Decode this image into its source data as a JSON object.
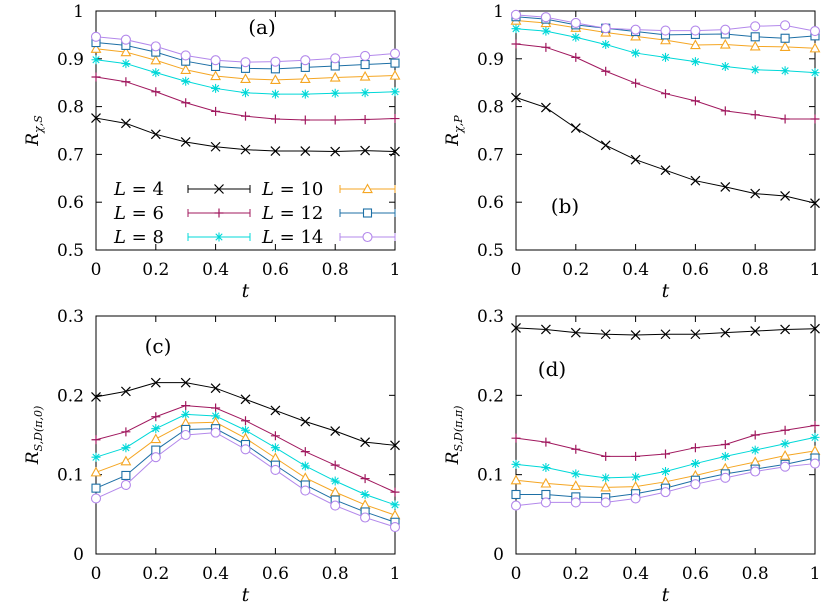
{
  "figure": {
    "legend_series": [
      "4",
      "6",
      "8",
      "10",
      "12",
      "14"
    ],
    "legend_prefix": "L ="
  },
  "chart_data": [
    {
      "type": "line",
      "panel_label": "(a)",
      "xlabel": "t",
      "ylabel_main": "R",
      "ylabel_sub": "χ,S",
      "xlim": [
        0,
        1
      ],
      "ylim": [
        0.5,
        1
      ],
      "xticks": [
        "0",
        "0.2",
        "0.4",
        "0.6",
        "0.8",
        "1"
      ],
      "yticks": [
        "0.5",
        "0.6",
        "0.7",
        "0.8",
        "0.9",
        "1"
      ],
      "x": [
        0,
        0.1,
        0.2,
        0.3,
        0.4,
        0.5,
        0.6,
        0.7,
        0.8,
        0.9,
        1.0
      ],
      "legend": "inside lower-left",
      "series": [
        {
          "name": "L = 4",
          "color": "#000000",
          "marker": "x",
          "values": [
            0.776,
            0.765,
            0.742,
            0.726,
            0.716,
            0.71,
            0.707,
            0.707,
            0.706,
            0.708,
            0.706
          ]
        },
        {
          "name": "L = 6",
          "color": "#a0185e",
          "marker": "plus",
          "values": [
            0.862,
            0.852,
            0.831,
            0.808,
            0.79,
            0.78,
            0.774,
            0.772,
            0.772,
            0.773,
            0.775
          ]
        },
        {
          "name": "L = 8",
          "color": "#00d8d8",
          "marker": "star",
          "values": [
            0.898,
            0.89,
            0.871,
            0.853,
            0.838,
            0.829,
            0.826,
            0.826,
            0.828,
            0.829,
            0.831
          ]
        },
        {
          "name": "L = 10",
          "color": "#f5a623",
          "marker": "triangle",
          "values": [
            0.921,
            0.914,
            0.897,
            0.877,
            0.864,
            0.858,
            0.856,
            0.858,
            0.861,
            0.863,
            0.865
          ]
        },
        {
          "name": "L = 12",
          "color": "#1d6fa5",
          "marker": "square",
          "values": [
            0.934,
            0.928,
            0.914,
            0.895,
            0.884,
            0.88,
            0.879,
            0.882,
            0.885,
            0.888,
            0.891
          ]
        },
        {
          "name": "L = 14",
          "color": "#b388eb",
          "marker": "circle",
          "values": [
            0.946,
            0.94,
            0.926,
            0.907,
            0.897,
            0.893,
            0.894,
            0.897,
            0.901,
            0.906,
            0.911
          ]
        }
      ]
    },
    {
      "type": "line",
      "panel_label": "(b)",
      "xlabel": "t",
      "ylabel_main": "R",
      "ylabel_sub": "χ,P",
      "xlim": [
        0,
        1
      ],
      "ylim": [
        0.5,
        1
      ],
      "xticks": [
        "0",
        "0.2",
        "0.4",
        "0.6",
        "0.8",
        "1"
      ],
      "yticks": [
        "0.5",
        "0.6",
        "0.7",
        "0.8",
        "0.9",
        "1"
      ],
      "x": [
        0,
        0.1,
        0.2,
        0.3,
        0.4,
        0.5,
        0.6,
        0.7,
        0.8,
        0.9,
        1.0
      ],
      "series": [
        {
          "name": "L = 4",
          "color": "#000000",
          "marker": "x",
          "values": [
            0.819,
            0.798,
            0.755,
            0.719,
            0.689,
            0.667,
            0.645,
            0.632,
            0.618,
            0.613,
            0.598
          ]
        },
        {
          "name": "L = 6",
          "color": "#a0185e",
          "marker": "plus",
          "values": [
            0.931,
            0.924,
            0.903,
            0.874,
            0.849,
            0.827,
            0.812,
            0.791,
            0.783,
            0.774,
            0.774
          ]
        },
        {
          "name": "L = 8",
          "color": "#00d8d8",
          "marker": "star",
          "values": [
            0.963,
            0.958,
            0.945,
            0.93,
            0.912,
            0.903,
            0.894,
            0.884,
            0.877,
            0.875,
            0.871
          ]
        },
        {
          "name": "L = 10",
          "color": "#f5a623",
          "marker": "triangle",
          "values": [
            0.98,
            0.975,
            0.965,
            0.955,
            0.947,
            0.939,
            0.929,
            0.93,
            0.926,
            0.925,
            0.922
          ]
        },
        {
          "name": "L = 12",
          "color": "#1d6fa5",
          "marker": "square",
          "values": [
            0.988,
            0.983,
            0.971,
            0.964,
            0.957,
            0.95,
            0.951,
            0.952,
            0.946,
            0.943,
            0.948
          ]
        },
        {
          "name": "L = 14",
          "color": "#b388eb",
          "marker": "circle",
          "values": [
            0.992,
            0.987,
            0.975,
            0.964,
            0.961,
            0.959,
            0.959,
            0.961,
            0.968,
            0.97,
            0.958
          ]
        }
      ]
    },
    {
      "type": "line",
      "panel_label": "(c)",
      "xlabel": "t",
      "ylabel_main": "R",
      "ylabel_sub": "S,D(π,0)",
      "xlim": [
        0,
        1
      ],
      "ylim": [
        0,
        0.3
      ],
      "xticks": [
        "0",
        "0.2",
        "0.4",
        "0.6",
        "0.8",
        "1"
      ],
      "yticks": [
        "0",
        "0.1",
        "0.2",
        "0.3"
      ],
      "x": [
        0,
        0.1,
        0.2,
        0.3,
        0.4,
        0.5,
        0.6,
        0.7,
        0.8,
        0.9,
        1.0
      ],
      "series": [
        {
          "name": "L = 4",
          "color": "#000000",
          "marker": "x",
          "values": [
            0.198,
            0.205,
            0.216,
            0.216,
            0.209,
            0.195,
            0.181,
            0.167,
            0.155,
            0.141,
            0.137
          ]
        },
        {
          "name": "L = 6",
          "color": "#a0185e",
          "marker": "plus",
          "values": [
            0.144,
            0.154,
            0.173,
            0.187,
            0.184,
            0.168,
            0.149,
            0.129,
            0.112,
            0.095,
            0.078
          ]
        },
        {
          "name": "L = 8",
          "color": "#00d8d8",
          "marker": "star",
          "values": [
            0.122,
            0.134,
            0.158,
            0.176,
            0.174,
            0.156,
            0.134,
            0.111,
            0.092,
            0.075,
            0.062
          ]
        },
        {
          "name": "L = 10",
          "color": "#f5a623",
          "marker": "triangle",
          "values": [
            0.103,
            0.117,
            0.145,
            0.165,
            0.166,
            0.146,
            0.121,
            0.096,
            0.078,
            0.062,
            0.049
          ]
        },
        {
          "name": "L = 12",
          "color": "#1d6fa5",
          "marker": "square",
          "values": [
            0.083,
            0.099,
            0.131,
            0.157,
            0.158,
            0.138,
            0.112,
            0.087,
            0.068,
            0.053,
            0.04
          ]
        },
        {
          "name": "L = 14",
          "color": "#b388eb",
          "marker": "circle",
          "values": [
            0.07,
            0.087,
            0.122,
            0.15,
            0.153,
            0.132,
            0.106,
            0.08,
            0.061,
            0.046,
            0.034
          ]
        }
      ]
    },
    {
      "type": "line",
      "panel_label": "(d)",
      "xlabel": "t",
      "ylabel_main": "R",
      "ylabel_sub": "S,D(π,π)",
      "xlim": [
        0,
        1
      ],
      "ylim": [
        0,
        0.3
      ],
      "xticks": [
        "0",
        "0.2",
        "0.4",
        "0.6",
        "0.8",
        "1"
      ],
      "yticks": [
        "0",
        "0.1",
        "0.2",
        "0.3"
      ],
      "x": [
        0,
        0.1,
        0.2,
        0.3,
        0.4,
        0.5,
        0.6,
        0.7,
        0.8,
        0.9,
        1.0
      ],
      "series": [
        {
          "name": "L = 4",
          "color": "#000000",
          "marker": "x",
          "values": [
            0.285,
            0.283,
            0.279,
            0.277,
            0.276,
            0.277,
            0.277,
            0.279,
            0.281,
            0.283,
            0.284
          ]
        },
        {
          "name": "L = 6",
          "color": "#a0185e",
          "marker": "plus",
          "values": [
            0.146,
            0.141,
            0.132,
            0.123,
            0.123,
            0.126,
            0.134,
            0.138,
            0.15,
            0.156,
            0.162
          ]
        },
        {
          "name": "L = 8",
          "color": "#00d8d8",
          "marker": "star",
          "values": [
            0.113,
            0.109,
            0.101,
            0.096,
            0.097,
            0.104,
            0.114,
            0.123,
            0.131,
            0.139,
            0.147
          ]
        },
        {
          "name": "L = 10",
          "color": "#f5a623",
          "marker": "triangle",
          "values": [
            0.093,
            0.089,
            0.086,
            0.084,
            0.085,
            0.091,
            0.099,
            0.108,
            0.116,
            0.124,
            0.13
          ]
        },
        {
          "name": "L = 12",
          "color": "#1d6fa5",
          "marker": "square",
          "values": [
            0.075,
            0.075,
            0.072,
            0.071,
            0.076,
            0.083,
            0.093,
            0.101,
            0.107,
            0.113,
            0.121
          ]
        },
        {
          "name": "L = 14",
          "color": "#b388eb",
          "marker": "circle",
          "values": [
            0.061,
            0.065,
            0.065,
            0.065,
            0.07,
            0.078,
            0.088,
            0.096,
            0.104,
            0.11,
            0.114
          ]
        }
      ]
    }
  ]
}
